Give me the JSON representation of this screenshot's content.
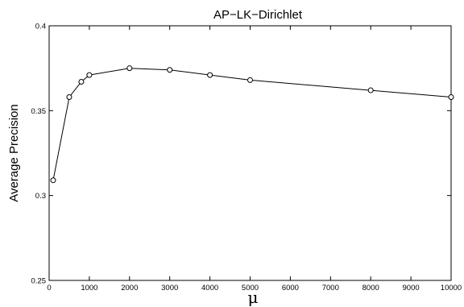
{
  "chart_data": {
    "type": "line",
    "title": "AP−LK−Dirichlet",
    "xlabel": "μ",
    "ylabel": "Average Precision",
    "xlim": [
      0,
      10000
    ],
    "ylim": [
      0.25,
      0.4
    ],
    "x_ticks": [
      0,
      1000,
      2000,
      3000,
      4000,
      5000,
      6000,
      7000,
      8000,
      9000,
      10000
    ],
    "x_tick_labels": [
      "0",
      "1000",
      "2000",
      "3000",
      "4000",
      "5000",
      "6000",
      "7000",
      "8000",
      "9000",
      "10000"
    ],
    "y_ticks": [
      0.25,
      0.3,
      0.35,
      0.4
    ],
    "y_tick_labels": [
      "0.25",
      "0.3",
      "0.35",
      "0.4"
    ],
    "grid": false,
    "series": [
      {
        "marker": "open-circle",
        "color": "#000000",
        "x": [
          100,
          500,
          800,
          1000,
          2000,
          3000,
          4000,
          5000,
          8000,
          10000
        ],
        "y": [
          0.309,
          0.358,
          0.367,
          0.371,
          0.375,
          0.374,
          0.371,
          0.368,
          0.362,
          0.358
        ]
      }
    ]
  }
}
